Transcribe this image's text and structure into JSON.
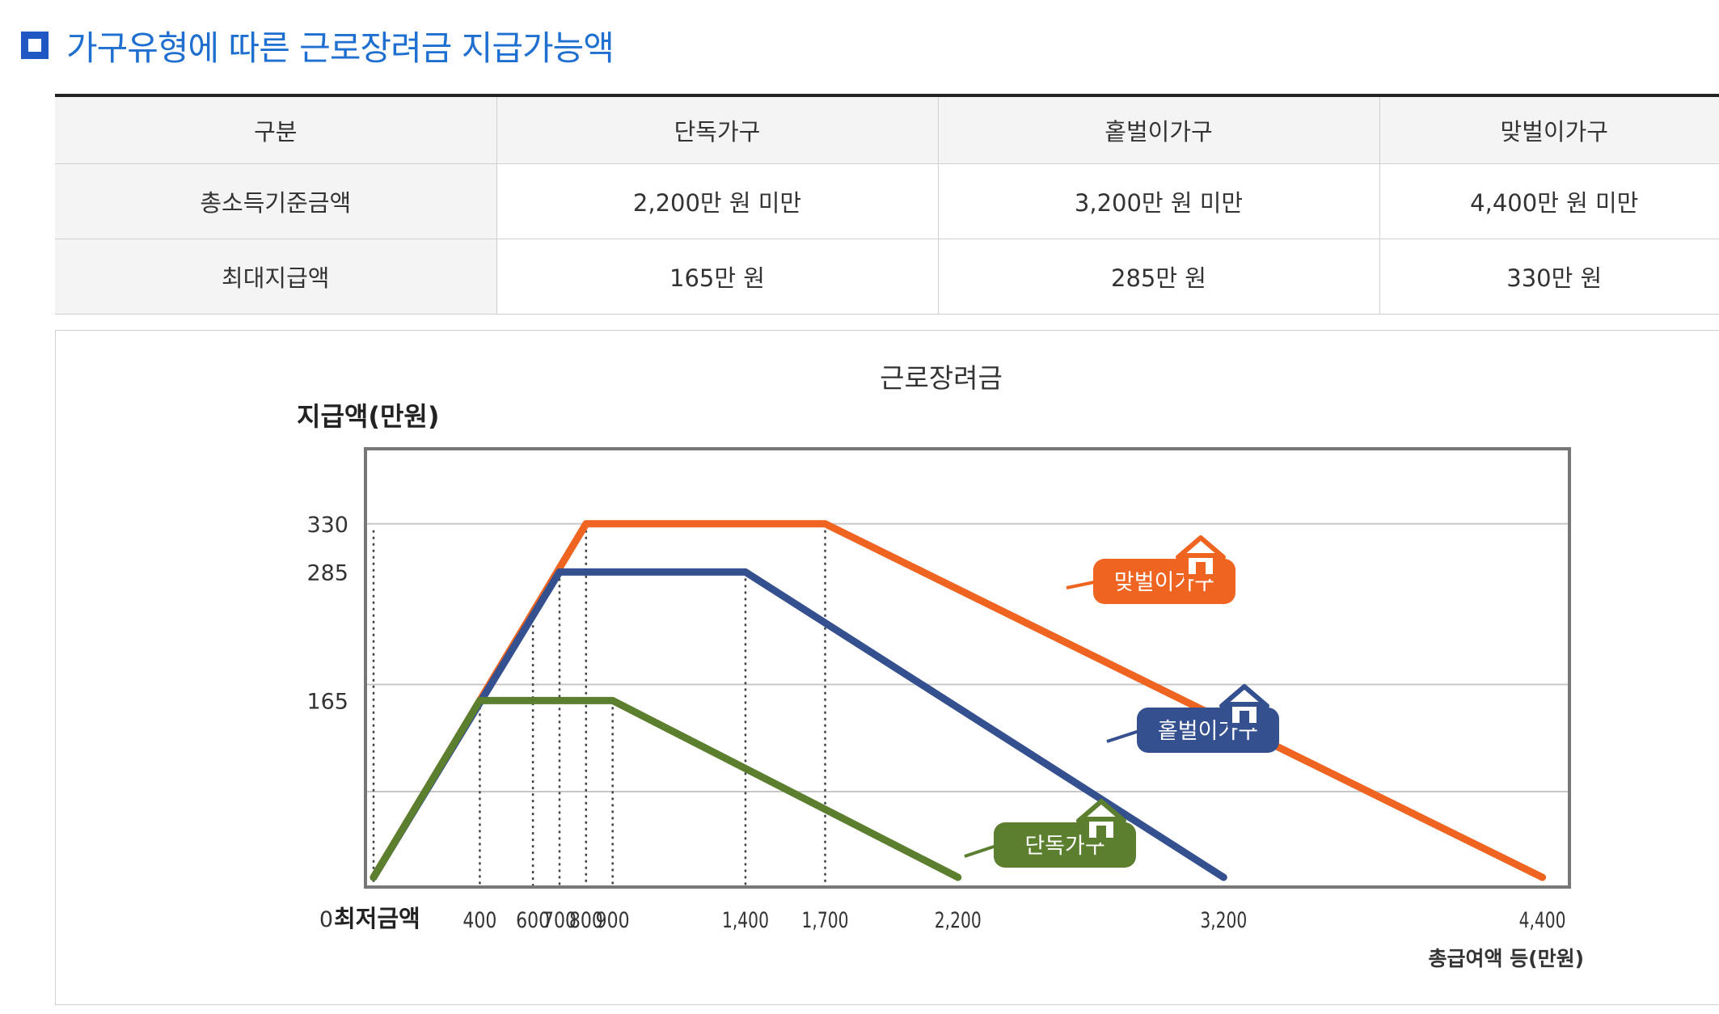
{
  "heading": {
    "title": "가구유형에 따른 근로장려금 지급가능액"
  },
  "table": {
    "headers": [
      "구분",
      "단독가구",
      "홑벌이가구",
      "맞벌이가구"
    ],
    "rows": [
      [
        "총소득기준금액",
        "2,200만 원 미만",
        "3,200만 원 미만",
        "4,400만 원 미만"
      ],
      [
        "최대지급액",
        "165만 원",
        "285만 원",
        "330만 원"
      ]
    ]
  },
  "chart_data": {
    "type": "line",
    "title": "근로장려금",
    "ylabel": "지급액(만원)",
    "xlabel": "총급여액 등(만원)",
    "x_origin_label": "0",
    "x_min_label": "최저금액",
    "xlim": [
      0,
      4450
    ],
    "ylim": [
      0,
      400
    ],
    "x_ticks": [
      400,
      600,
      700,
      800,
      900,
      1400,
      1700,
      2200,
      3200,
      4400
    ],
    "y_ticks": [
      165,
      285,
      330
    ],
    "grid": true,
    "series": [
      {
        "name": "단독가구",
        "color": "#5b7f2e",
        "x": [
          0,
          400,
          900,
          2200
        ],
        "y": [
          0,
          165,
          165,
          0
        ]
      },
      {
        "name": "홑벌이가구",
        "color": "#35508f",
        "x": [
          0,
          700,
          1400,
          3200
        ],
        "y": [
          0,
          285,
          285,
          0
        ]
      },
      {
        "name": "맞벌이가구",
        "color": "#ee6420",
        "x": [
          0,
          800,
          1700,
          4400
        ],
        "y": [
          0,
          330,
          330,
          0
        ]
      }
    ]
  }
}
